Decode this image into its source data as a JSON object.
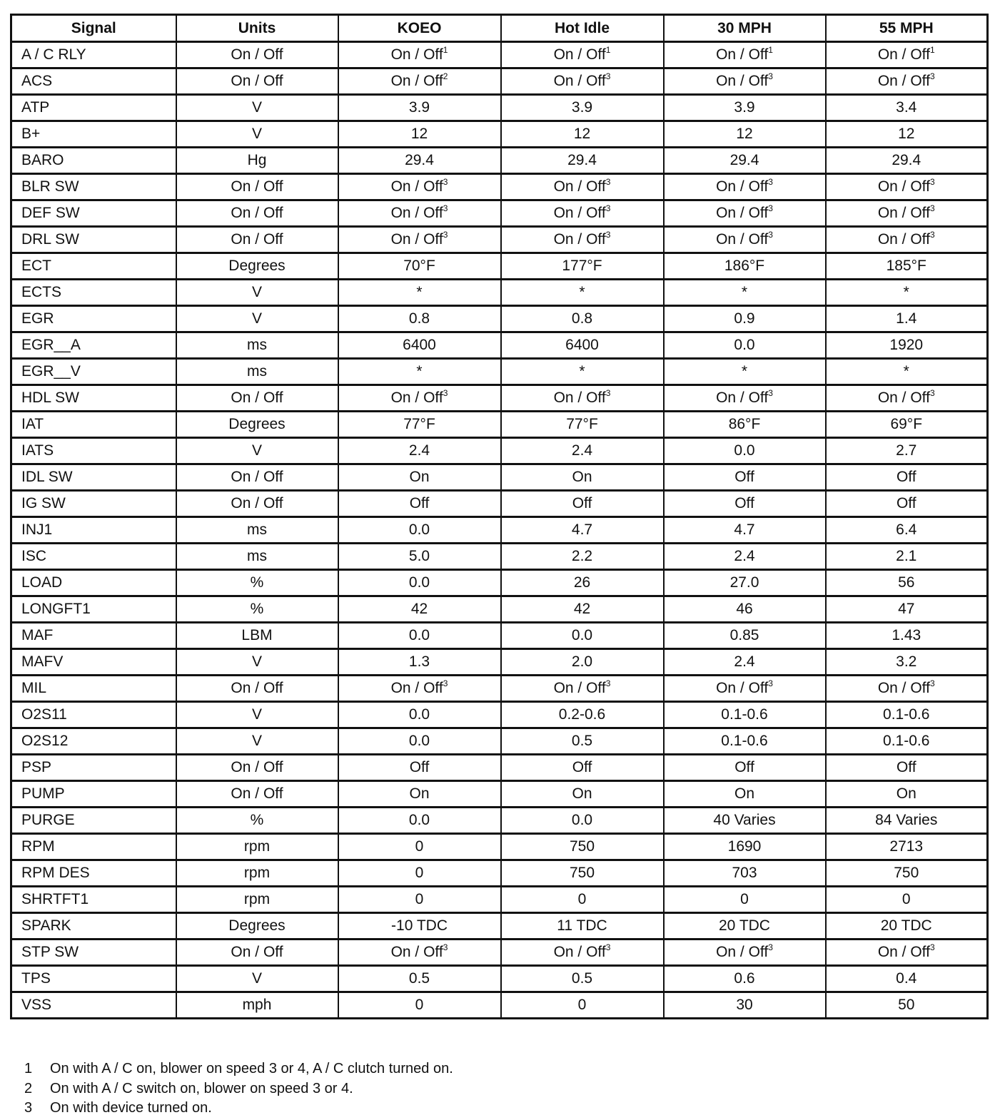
{
  "table": {
    "headers": [
      "Signal",
      "Units",
      "KOEO",
      "Hot Idle",
      "30 MPH",
      "55 MPH"
    ],
    "rows": [
      [
        "A / C RLY",
        "On / Off",
        {
          "t": "On / Off",
          "sup": "1"
        },
        {
          "t": "On / Off",
          "sup": "1"
        },
        {
          "t": "On / Off",
          "sup": "1"
        },
        {
          "t": "On / Off",
          "sup": "1"
        }
      ],
      [
        "ACS",
        "On / Off",
        {
          "t": "On / Off",
          "sup": "2"
        },
        {
          "t": "On / Off",
          "sup": "3"
        },
        {
          "t": "On / Off",
          "sup": "3"
        },
        {
          "t": "On / Off",
          "sup": "3"
        }
      ],
      [
        "ATP",
        "V",
        "3.9",
        "3.9",
        "3.9",
        "3.4"
      ],
      [
        "B+",
        "V",
        "12",
        "12",
        "12",
        "12"
      ],
      [
        "BARO",
        "Hg",
        "29.4",
        "29.4",
        "29.4",
        "29.4"
      ],
      [
        "BLR SW",
        "On / Off",
        {
          "t": "On / Off",
          "sup": "3"
        },
        {
          "t": "On / Off",
          "sup": "3"
        },
        {
          "t": "On / Off",
          "sup": "3"
        },
        {
          "t": "On / Off",
          "sup": "3"
        }
      ],
      [
        "DEF SW",
        "On / Off",
        {
          "t": "On / Off",
          "sup": "3"
        },
        {
          "t": "On / Off",
          "sup": "3"
        },
        {
          "t": "On / Off",
          "sup": "3"
        },
        {
          "t": "On / Off",
          "sup": "3"
        }
      ],
      [
        "DRL SW",
        "On / Off",
        {
          "t": "On / Off",
          "sup": "3"
        },
        {
          "t": "On / Off",
          "sup": "3"
        },
        {
          "t": "On / Off",
          "sup": "3"
        },
        {
          "t": "On / Off",
          "sup": "3"
        }
      ],
      [
        "ECT",
        "Degrees",
        "70°F",
        "177°F",
        "186°F",
        "185°F"
      ],
      [
        "ECTS",
        "V",
        "*",
        "*",
        "*",
        "*"
      ],
      [
        "EGR",
        "V",
        "0.8",
        "0.8",
        "0.9",
        "1.4"
      ],
      [
        "EGR__A",
        "ms",
        "6400",
        "6400",
        "0.0",
        "1920"
      ],
      [
        "EGR__V",
        "ms",
        "*",
        "*",
        "*",
        "*"
      ],
      [
        "HDL SW",
        "On / Off",
        {
          "t": "On / Off",
          "sup": "3"
        },
        {
          "t": "On / Off",
          "sup": "3"
        },
        {
          "t": "On / Off",
          "sup": "3"
        },
        {
          "t": "On / Off",
          "sup": "3"
        }
      ],
      [
        "IAT",
        "Degrees",
        "77°F",
        "77°F",
        "86°F",
        "69°F"
      ],
      [
        "IATS",
        "V",
        "2.4",
        "2.4",
        "0.0",
        "2.7"
      ],
      [
        "IDL SW",
        "On / Off",
        "On",
        "On",
        "Off",
        "Off"
      ],
      [
        "IG SW",
        "On / Off",
        "Off",
        "Off",
        "Off",
        "Off"
      ],
      [
        "INJ1",
        "ms",
        "0.0",
        "4.7",
        "4.7",
        "6.4"
      ],
      [
        "ISC",
        "ms",
        "5.0",
        "2.2",
        "2.4",
        "2.1"
      ],
      [
        "LOAD",
        "%",
        "0.0",
        "26",
        "27.0",
        "56"
      ],
      [
        "LONGFT1",
        "%",
        "42",
        "42",
        "46",
        "47"
      ],
      [
        "MAF",
        "LBM",
        "0.0",
        "0.0",
        "0.85",
        "1.43"
      ],
      [
        "MAFV",
        "V",
        "1.3",
        "2.0",
        "2.4",
        "3.2"
      ],
      [
        "MIL",
        "On / Off",
        {
          "t": "On / Off",
          "sup": "3"
        },
        {
          "t": "On / Off",
          "sup": "3"
        },
        {
          "t": "On / Off",
          "sup": "3"
        },
        {
          "t": "On / Off",
          "sup": "3"
        }
      ],
      [
        "O2S11",
        "V",
        "0.0",
        "0.2-0.6",
        "0.1-0.6",
        "0.1-0.6"
      ],
      [
        "O2S12",
        "V",
        "0.0",
        "0.5",
        "0.1-0.6",
        "0.1-0.6"
      ],
      [
        "PSP",
        "On / Off",
        "Off",
        "Off",
        "Off",
        "Off"
      ],
      [
        "PUMP",
        "On / Off",
        "On",
        "On",
        "On",
        "On"
      ],
      [
        "PURGE",
        "%",
        "0.0",
        "0.0",
        "40 Varies",
        "84 Varies"
      ],
      [
        "RPM",
        "rpm",
        "0",
        "750",
        "1690",
        "2713"
      ],
      [
        "RPM DES",
        "rpm",
        "0",
        "750",
        "703",
        "750"
      ],
      [
        "SHRTFT1",
        "rpm",
        "0",
        "0",
        "0",
        "0"
      ],
      [
        "SPARK",
        "Degrees",
        "-10 TDC",
        "11 TDC",
        "20 TDC",
        "20 TDC"
      ],
      [
        "STP SW",
        "On / Off",
        {
          "t": "On / Off",
          "sup": "3"
        },
        {
          "t": "On / Off",
          "sup": "3"
        },
        {
          "t": "On / Off",
          "sup": "3"
        },
        {
          "t": "On / Off",
          "sup": "3"
        }
      ],
      [
        "TPS",
        "V",
        "0.5",
        "0.5",
        "0.6",
        "0.4"
      ],
      [
        "VSS",
        "mph",
        "0",
        "0",
        "30",
        "50"
      ]
    ]
  },
  "footnotes": [
    {
      "num": "1",
      "text": "On with A / C on, blower on speed 3 or 4, A / C clutch turned on."
    },
    {
      "num": "2",
      "text": "On with A / C switch on, blower on speed 3 or 4."
    },
    {
      "num": "3",
      "text": "On with device turned on."
    }
  ]
}
